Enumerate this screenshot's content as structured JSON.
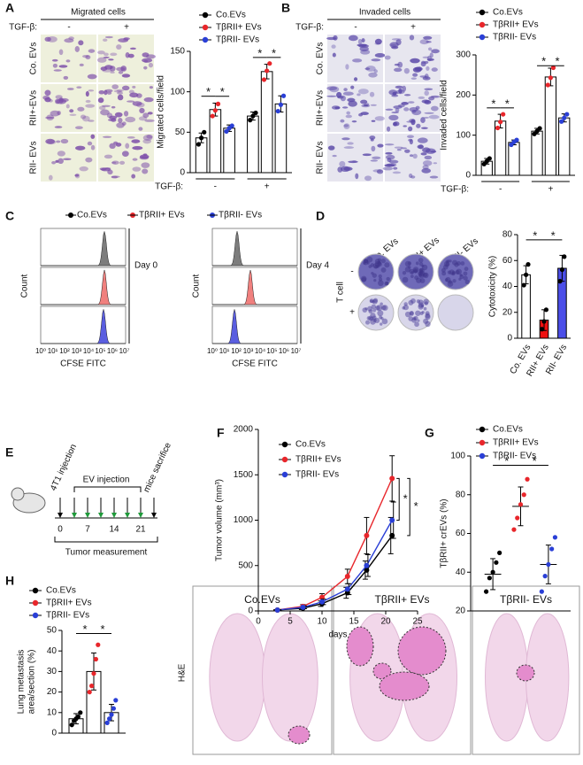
{
  "panels": {
    "A": {
      "letter": "A",
      "image_title": "Migrated cells",
      "treatment": "TGF-β:",
      "conditions": [
        "-",
        "+"
      ],
      "rows": [
        "Co. EVs",
        "RII+-EVs",
        "RII- EVs"
      ]
    },
    "B": {
      "letter": "B",
      "image_title": "Invaded cells",
      "treatment": "TGF-β:",
      "conditions": [
        "-",
        "+"
      ],
      "rows": [
        "Co. EVs",
        "RII+-EVs",
        "RII- EVs"
      ]
    },
    "C": {
      "letter": "C",
      "legend": [
        "Co.EVs",
        "TβRII+ EVs",
        "TβRII- EVs"
      ],
      "y_label": "Count",
      "x_label": "CFSE FITC",
      "days": [
        "Day 0",
        "Day 4"
      ],
      "x_tick_labels": [
        "10⁰",
        "10¹",
        "10²",
        "10³",
        "10⁴",
        "10⁵",
        "10⁶",
        "10⁷"
      ]
    },
    "D": {
      "letter": "D",
      "plate_labels": [
        "Co. EVs",
        "RII+ EVs",
        "RII- EVs"
      ],
      "row_title": "T cell",
      "rows": [
        "-",
        "+"
      ]
    },
    "E": {
      "letter": "E",
      "events": [
        "4T1 injection",
        "EV injection",
        "mice sacrifice"
      ],
      "days": [
        "0",
        "7",
        "14",
        "21"
      ],
      "footer": "Tumor measurement"
    },
    "F": {
      "letter": "F"
    },
    "G": {
      "letter": "G"
    },
    "H": {
      "letter": "H",
      "stain": "H&E",
      "images": [
        "Co.EVs",
        "TβRII+ EVs",
        "TβRII- EVs"
      ]
    }
  },
  "chart_data": [
    {
      "type": "bar",
      "ylabel": "Migrated cells/field",
      "categories": [
        "-",
        "+"
      ],
      "category_title": "TGF-β:",
      "bar_fill": "#ffffff",
      "series": [
        {
          "name": "Co.EVs",
          "color": "#000000",
          "values": [
            43,
            70
          ],
          "errors": [
            6,
            5
          ],
          "points": [
            [
              35,
              43,
              50
            ],
            [
              65,
              70,
              74
            ]
          ]
        },
        {
          "name": "TβRII+ EVs",
          "color": "#e8262b",
          "values": [
            78,
            125
          ],
          "errors": [
            8,
            9
          ],
          "points": [
            [
              70,
              77,
              85
            ],
            [
              115,
              126,
              135
            ]
          ]
        },
        {
          "name": "TβRII- EVs",
          "color": "#2a3fd6",
          "values": [
            55,
            85
          ],
          "errors": [
            4,
            10
          ],
          "points": [
            [
              51,
              55,
              58
            ],
            [
              76,
              84,
              95
            ]
          ]
        }
      ],
      "ylim": [
        0,
        150
      ],
      "yticks": [
        0,
        50,
        100,
        150
      ],
      "annotations": [
        "*",
        "*",
        "*",
        "*"
      ]
    },
    {
      "type": "bar",
      "ylabel": "Invaded cells/field",
      "categories": [
        "-",
        "+"
      ],
      "category_title": "TGF-β:",
      "bar_fill": "#ffffff",
      "series": [
        {
          "name": "Co.EVs",
          "color": "#000000",
          "values": [
            35,
            110
          ],
          "errors": [
            7,
            7
          ],
          "points": [
            [
              28,
              35,
              42
            ],
            [
              103,
              110,
              117
            ]
          ]
        },
        {
          "name": "TβRII+ EVs",
          "color": "#e8262b",
          "values": [
            135,
            245
          ],
          "errors": [
            17,
            22
          ],
          "points": [
            [
              118,
              133,
              152
            ],
            [
              225,
              243,
              268
            ]
          ]
        },
        {
          "name": "TβRII- EVs",
          "color": "#2a3fd6",
          "values": [
            82,
            143
          ],
          "errors": [
            6,
            10
          ],
          "points": [
            [
              76,
              83,
              88
            ],
            [
              134,
              143,
              152
            ]
          ]
        }
      ],
      "ylim": [
        0,
        300
      ],
      "yticks": [
        0,
        100,
        200,
        300
      ],
      "annotations": [
        "*",
        "*",
        "*",
        "*"
      ]
    },
    {
      "type": "bar",
      "ylabel": "Cytotoxicity (%)",
      "categories": [
        "Co. EVs",
        "RII+ EVs",
        "RII- EVs"
      ],
      "point_color": "#000000",
      "series": [
        {
          "colors": [
            "#ffffff",
            "#f01010",
            "#4b4ee8"
          ],
          "values": [
            49,
            14,
            54
          ],
          "errors": [
            7,
            8,
            10
          ],
          "points": [
            [
              41,
              49,
              57
            ],
            [
              7,
              13,
              22
            ],
            [
              44,
              53,
              63
            ]
          ]
        }
      ],
      "ylim": [
        0,
        80
      ],
      "yticks": [
        0,
        20,
        40,
        60,
        80
      ],
      "annotations": [
        "*",
        "*"
      ]
    },
    {
      "type": "line",
      "ylabel": "Tumor volume (mm³)",
      "xlabel": "days",
      "x": [
        3,
        7,
        10,
        14,
        17,
        21
      ],
      "series": [
        {
          "name": "Co.EVs",
          "color": "#000000",
          "values": [
            10,
            30,
            80,
            200,
            450,
            830
          ],
          "errors": [
            5,
            15,
            30,
            60,
            100,
            200
          ]
        },
        {
          "name": "TβRII+ EVs",
          "color": "#e8262b",
          "values": [
            10,
            50,
            150,
            380,
            830,
            1460
          ],
          "errors": [
            5,
            20,
            40,
            80,
            200,
            250
          ]
        },
        {
          "name": "TβRII- EVs",
          "color": "#2a3fd6",
          "values": [
            10,
            40,
            100,
            240,
            500,
            1000
          ],
          "errors": [
            5,
            15,
            30,
            60,
            120,
            200
          ]
        }
      ],
      "xlim": [
        0,
        25
      ],
      "xticks": [
        0,
        5,
        10,
        15,
        20,
        25
      ],
      "ylim": [
        0,
        2000
      ],
      "yticks": [
        0,
        500,
        1000,
        1500,
        2000
      ],
      "annotations": [
        "*",
        "*"
      ]
    },
    {
      "type": "dot",
      "ylabel": "TβRII+ crEVs (%)",
      "series": [
        {
          "name": "Co.EVs",
          "color": "#000000",
          "values": [
            39
          ],
          "errors": [
            8
          ],
          "points": [
            [
              30,
              37,
              40,
              45,
              50
            ]
          ]
        },
        {
          "name": "TβRII+ EVs",
          "color": "#e8262b",
          "values": [
            74
          ],
          "errors": [
            10
          ],
          "points": [
            [
              62,
              68,
              75,
              80,
              88
            ]
          ]
        },
        {
          "name": "TβRII- EVs",
          "color": "#2a3fd6",
          "values": [
            44
          ],
          "errors": [
            10
          ],
          "points": [
            [
              30,
              38,
              44,
              52,
              58
            ]
          ]
        }
      ],
      "ylim": [
        20,
        100
      ],
      "yticks": [
        20,
        40,
        60,
        80,
        100
      ],
      "annotations": [
        "*",
        "*"
      ]
    },
    {
      "type": "bar",
      "ylabel": [
        "Lung metastasis",
        "area/section (%)"
      ],
      "bar_fill": "#ffffff",
      "series": [
        {
          "name": "Co.EVs",
          "color": "#000000",
          "values": [
            7
          ],
          "errors": [
            2.5
          ],
          "points": [
            [
              4,
              6,
              7,
              8,
              10
            ]
          ]
        },
        {
          "name": "TβRII+ EVs",
          "color": "#e8262b",
          "values": [
            30
          ],
          "errors": [
            9
          ],
          "points": [
            [
              20,
              23,
              29,
              36,
              43
            ]
          ]
        },
        {
          "name": "TβRII- EVs",
          "color": "#2a3fd6",
          "values": [
            10
          ],
          "errors": [
            4
          ],
          "points": [
            [
              5,
              7,
              9,
              12,
              16
            ]
          ]
        }
      ],
      "ylim": [
        0,
        50
      ],
      "yticks": [
        0,
        10,
        20,
        30,
        40,
        50
      ],
      "annotations": [
        "*",
        "*"
      ]
    }
  ]
}
